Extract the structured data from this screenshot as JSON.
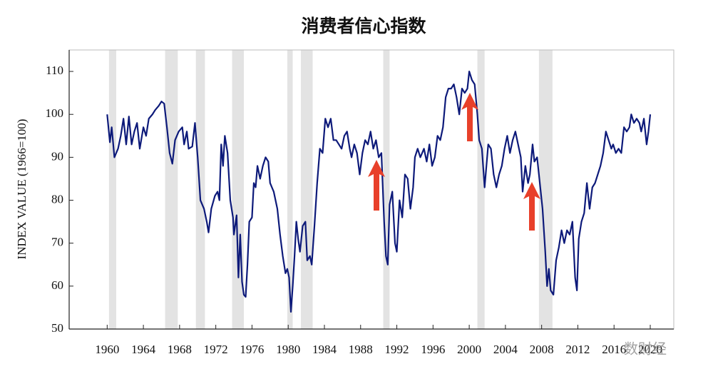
{
  "chart_data": {
    "type": "line",
    "title": "消费者信心指数",
    "y_label": "INDEX VALUE (1966=100)",
    "watermark": "数财经",
    "color": "#0d1a7a",
    "shade_color": "#e3e3e3",
    "xlim": [
      1955.8,
      2022.6
    ],
    "ylim": [
      50,
      115
    ],
    "xticks": [
      1960,
      1964,
      1968,
      1972,
      1976,
      1980,
      1984,
      1988,
      1992,
      1996,
      2000,
      2004,
      2008,
      2012,
      2016,
      2020
    ],
    "yticks": [
      50,
      60,
      70,
      80,
      90,
      100,
      110
    ],
    "grid": false,
    "shaded_periods": [
      [
        1960.2,
        1961.0
      ],
      [
        1966.4,
        1967.8
      ],
      [
        1969.8,
        1970.8
      ],
      [
        1973.8,
        1975.1
      ],
      [
        1979.9,
        1980.5
      ],
      [
        1981.4,
        1982.7
      ],
      [
        1990.5,
        1991.2
      ],
      [
        2000.9,
        2001.7
      ],
      [
        2007.7,
        2009.2
      ]
    ],
    "x": [
      1960.0,
      1960.3,
      1960.5,
      1960.8,
      1961.2,
      1961.5,
      1961.8,
      1962.1,
      1962.4,
      1962.7,
      1963.0,
      1963.3,
      1963.6,
      1964.0,
      1964.3,
      1964.6,
      1965.0,
      1965.3,
      1965.7,
      1966.0,
      1966.3,
      1966.6,
      1966.9,
      1967.2,
      1967.5,
      1967.9,
      1968.3,
      1968.5,
      1968.8,
      1969.0,
      1969.4,
      1969.7,
      1970.0,
      1970.3,
      1970.7,
      1971.0,
      1971.2,
      1971.5,
      1971.9,
      1972.2,
      1972.4,
      1972.6,
      1972.8,
      1973.0,
      1973.3,
      1973.6,
      1973.9,
      1974.0,
      1974.3,
      1974.5,
      1974.7,
      1974.9,
      1975.1,
      1975.3,
      1975.5,
      1975.7,
      1976.0,
      1976.2,
      1976.4,
      1976.6,
      1976.9,
      1977.2,
      1977.5,
      1977.8,
      1978.0,
      1978.4,
      1978.8,
      1979.1,
      1979.4,
      1979.7,
      1979.9,
      1980.1,
      1980.3,
      1980.5,
      1980.7,
      1980.9,
      1981.1,
      1981.3,
      1981.6,
      1981.9,
      1982.1,
      1982.4,
      1982.6,
      1982.9,
      1983.2,
      1983.5,
      1983.8,
      1984.1,
      1984.4,
      1984.7,
      1985.0,
      1985.3,
      1985.6,
      1985.9,
      1986.2,
      1986.5,
      1986.8,
      1987.0,
      1987.3,
      1987.6,
      1987.9,
      1988.2,
      1988.5,
      1988.8,
      1989.1,
      1989.4,
      1989.7,
      1990.0,
      1990.3,
      1990.6,
      1990.8,
      1991.0,
      1991.2,
      1991.5,
      1991.8,
      1992.0,
      1992.3,
      1992.6,
      1992.9,
      1993.2,
      1993.5,
      1993.8,
      1994.0,
      1994.3,
      1994.6,
      1995.0,
      1995.3,
      1995.6,
      1995.9,
      1996.2,
      1996.5,
      1996.8,
      1997.1,
      1997.4,
      1997.7,
      1998.0,
      1998.3,
      1998.6,
      1998.9,
      1999.2,
      1999.5,
      1999.8,
      2000.0,
      2000.3,
      2000.6,
      2000.9,
      2001.1,
      2001.4,
      2001.7,
      2001.9,
      2002.1,
      2002.4,
      2002.7,
      2003.0,
      2003.3,
      2003.6,
      2003.9,
      2004.2,
      2004.5,
      2004.8,
      2005.1,
      2005.4,
      2005.7,
      2005.9,
      2006.2,
      2006.5,
      2006.7,
      2007.0,
      2007.2,
      2007.5,
      2007.8,
      2008.1,
      2008.4,
      2008.6,
      2008.8,
      2009.0,
      2009.3,
      2009.6,
      2009.9,
      2010.2,
      2010.5,
      2010.8,
      2011.1,
      2011.4,
      2011.7,
      2011.9,
      2012.1,
      2012.4,
      2012.7,
      2013.0,
      2013.3,
      2013.6,
      2013.9,
      2014.2,
      2014.5,
      2014.8,
      2015.1,
      2015.4,
      2015.7,
      2015.9,
      2016.2,
      2016.5,
      2016.8,
      2017.1,
      2017.4,
      2017.7,
      2017.9,
      2018.2,
      2018.5,
      2018.8,
      2019.0,
      2019.3,
      2019.6,
      2019.8,
      2020.0
    ],
    "values": [
      100,
      93.5,
      97,
      90,
      92,
      95,
      99,
      93,
      99.5,
      93,
      96,
      98,
      92,
      97,
      95,
      99,
      100,
      101,
      102,
      103,
      102.5,
      97,
      91,
      88.5,
      94,
      96,
      97,
      93,
      96,
      92,
      92.5,
      98,
      90,
      80,
      78,
      75,
      72.5,
      78,
      81,
      82,
      80,
      93,
      88,
      95,
      91,
      80,
      76,
      72,
      76.5,
      62,
      72,
      61,
      58,
      57.5,
      65,
      75,
      76,
      84,
      83,
      88,
      85,
      88,
      90,
      89,
      84,
      82,
      78,
      72,
      67,
      63,
      64,
      62,
      54,
      60,
      67,
      75,
      71,
      68,
      74,
      75,
      66,
      67,
      65,
      74,
      84,
      92,
      91,
      99,
      97,
      99,
      94,
      94,
      93,
      92,
      95,
      96,
      92,
      90,
      93,
      91,
      86,
      91,
      94,
      93,
      96,
      92,
      94,
      90,
      91,
      75,
      67,
      65,
      79,
      82,
      70,
      68,
      80,
      76,
      86,
      85,
      78,
      83,
      90,
      92,
      90,
      92,
      89,
      93,
      88,
      90,
      95,
      94,
      97,
      104,
      106,
      106,
      107,
      104,
      100,
      106,
      105,
      106,
      110,
      108,
      107,
      100,
      94,
      92,
      83,
      88,
      93,
      92,
      86,
      83,
      86,
      88,
      92,
      95,
      91,
      94,
      96,
      93,
      90,
      82,
      88,
      84,
      86,
      93,
      89,
      90,
      84,
      78,
      68,
      60,
      64,
      59,
      58,
      66,
      69,
      73,
      70,
      73,
      72,
      75,
      62,
      59,
      71,
      75,
      77,
      84,
      78,
      83,
      84,
      86,
      88,
      91,
      96,
      94,
      92,
      93,
      91,
      92,
      91,
      97,
      96,
      97,
      100,
      98,
      99,
      98,
      96,
      99,
      93,
      96,
      100
    ]
  }
}
